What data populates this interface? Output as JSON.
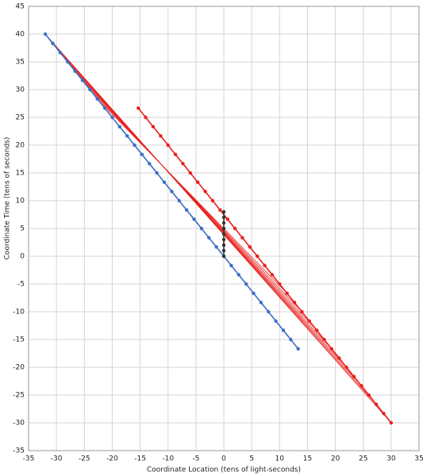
{
  "chart_data": {
    "type": "scatter",
    "xlabel": "Coordinate Location (tens of light-seconds)",
    "ylabel": "Coordinate Time (tens of seconds)",
    "xlim": [
      -35,
      35
    ],
    "ylim": [
      -35,
      45
    ],
    "xticks": [
      -35,
      -30,
      -25,
      -20,
      -15,
      -10,
      -5,
      0,
      5,
      10,
      15,
      20,
      25,
      30,
      35
    ],
    "yticks": [
      -35,
      -30,
      -25,
      -20,
      -15,
      -10,
      -5,
      0,
      5,
      10,
      15,
      20,
      25,
      30,
      35,
      40,
      45
    ],
    "grid": true,
    "series": [
      {
        "color": "#e8201e",
        "lines": true,
        "points": false,
        "x": [
          -32,
          30,
          null,
          -30.67,
          27.33,
          null,
          -29.33,
          24.67,
          null,
          -28,
          22,
          null,
          -26.67,
          19.33,
          null,
          -25.33,
          16.67,
          null,
          -24,
          14,
          null,
          -22.67,
          11.33
        ],
        "y": [
          40,
          -30,
          null,
          38.33,
          -26.67,
          null,
          36.67,
          -23.33,
          null,
          35,
          -20,
          null,
          33.33,
          -16.67,
          null,
          31.67,
          -13.33,
          null,
          30,
          -10,
          null,
          28.33,
          -6.67
        ]
      },
      {
        "color": "#3a6fc4",
        "lines": true,
        "points": true,
        "x": [
          -32,
          -30.67,
          -29.33,
          -28,
          -26.67,
          -25.33,
          -24,
          -22.67,
          -21.33,
          -20,
          -18.67,
          -17.33,
          -16,
          -14.67,
          -13.33,
          -12,
          -10.67,
          -9.33,
          -8,
          -6.67,
          -5.33,
          -4,
          -2.67,
          -1.33,
          0,
          1.33,
          2.67,
          4,
          5.33,
          6.67,
          8,
          9.33,
          10.67,
          12,
          13.33
        ],
        "y": [
          40,
          38.33,
          36.67,
          35,
          33.33,
          31.67,
          30,
          28.33,
          26.67,
          25,
          23.33,
          21.67,
          20,
          18.33,
          16.67,
          15,
          13.33,
          11.67,
          10,
          8.33,
          6.67,
          5,
          3.33,
          1.67,
          0,
          -1.67,
          -3.33,
          -5,
          -6.67,
          -8.33,
          -10,
          -11.67,
          -13.33,
          -15,
          -16.67
        ]
      },
      {
        "color": "#e8201e",
        "lines": true,
        "points": true,
        "x": [
          -15.33,
          -14,
          -12.67,
          -11.33,
          -10,
          -8.67,
          -7.33,
          -6,
          -4.67,
          -3.33,
          -2,
          -0.67,
          0.67,
          2,
          3.33,
          4.67,
          6,
          7.33,
          8.67,
          10,
          11.33,
          12.67,
          14,
          15.33,
          16.67,
          18,
          19.33,
          20.67,
          22,
          23.33,
          24.67,
          26,
          27.33,
          28.67,
          30
        ],
        "y": [
          26.67,
          25,
          23.33,
          21.67,
          20,
          18.33,
          16.67,
          15,
          13.33,
          11.67,
          10,
          8.33,
          6.67,
          5,
          3.33,
          1.67,
          0,
          -1.67,
          -3.33,
          -5,
          -6.67,
          -8.33,
          -10,
          -11.67,
          -13.33,
          -15,
          -16.67,
          -18.33,
          -20,
          -21.67,
          -23.33,
          -25,
          -26.67,
          -28.33,
          -30
        ]
      },
      {
        "color": "#333333",
        "lines": true,
        "points": true,
        "x": [
          0,
          0,
          0,
          0,
          0,
          0,
          0,
          0,
          0
        ],
        "y": [
          0,
          1,
          2,
          3,
          4,
          5,
          6,
          7,
          8
        ]
      }
    ]
  }
}
